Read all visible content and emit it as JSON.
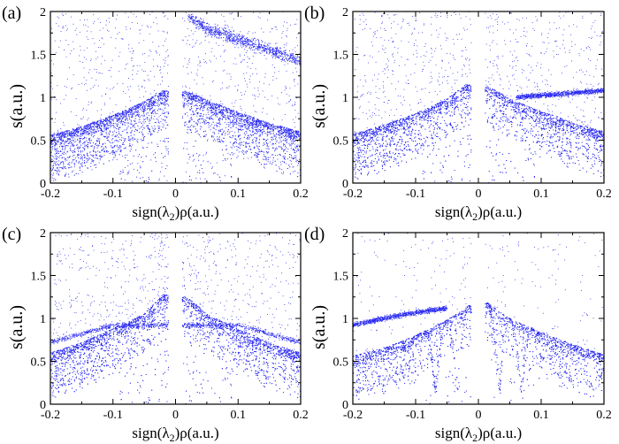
{
  "figure": {
    "point_color": "#2a2af0",
    "axis_color": "#000000",
    "background": "#ffffff"
  },
  "chart_data": [
    {
      "type": "scatter",
      "panel_label": "(a)",
      "xlabel": "sign(λ₂)ρ(a.u.)",
      "ylabel": "s(a.u.)",
      "xlim": [
        -0.2,
        0.2
      ],
      "ylim": [
        0,
        2
      ],
      "xticks": [
        "-0.2",
        "-0.1",
        "0",
        "0.1",
        "0.2"
      ],
      "yticks": [
        "0",
        "0.5",
        "1",
        "1.5",
        "2"
      ],
      "grid": false,
      "series": [
        {
          "values": [
            {
              "x": -0.2,
              "y": 0.56
            },
            {
              "x": -0.15,
              "y": 0.66
            },
            {
              "x": -0.1,
              "y": 0.79
            },
            {
              "x": -0.05,
              "y": 0.95
            },
            {
              "x": -0.02,
              "y": 1.08
            },
            {
              "x": 0.02,
              "y": 1.07
            },
            {
              "x": 0.05,
              "y": 0.97
            },
            {
              "x": 0.1,
              "y": 0.83
            },
            {
              "x": 0.15,
              "y": 0.7
            },
            {
              "x": 0.2,
              "y": 0.6
            }
          ]
        },
        {
          "values": [
            {
              "x": 0.02,
              "y": 1.95
            },
            {
              "x": 0.05,
              "y": 1.8
            },
            {
              "x": 0.1,
              "y": 1.68
            },
            {
              "x": 0.15,
              "y": 1.55
            },
            {
              "x": 0.2,
              "y": 1.42
            }
          ]
        }
      ]
    },
    {
      "type": "scatter",
      "panel_label": "(b)",
      "xlabel": "sign(λ₂)ρ(a.u.)",
      "ylabel": "s(a.u.)",
      "xlim": [
        -0.2,
        0.2
      ],
      "ylim": [
        0,
        2
      ],
      "xticks": [
        "-0.2",
        "-0.1",
        "0",
        "0.1",
        "0.2"
      ],
      "yticks": [
        "0",
        "0.5",
        "1",
        "1.5",
        "2"
      ],
      "grid": false,
      "series": [
        {
          "values": [
            {
              "x": -0.2,
              "y": 0.57
            },
            {
              "x": -0.15,
              "y": 0.68
            },
            {
              "x": -0.1,
              "y": 0.81
            },
            {
              "x": -0.05,
              "y": 0.98
            },
            {
              "x": -0.02,
              "y": 1.15
            },
            {
              "x": 0.02,
              "y": 1.12
            },
            {
              "x": 0.05,
              "y": 0.98
            },
            {
              "x": 0.1,
              "y": 0.84
            },
            {
              "x": 0.15,
              "y": 0.71
            },
            {
              "x": 0.2,
              "y": 0.6
            }
          ]
        },
        {
          "values": [
            {
              "x": 0.06,
              "y": 1.0
            },
            {
              "x": 0.1,
              "y": 1.02
            },
            {
              "x": 0.15,
              "y": 1.05
            },
            {
              "x": 0.2,
              "y": 1.08
            }
          ]
        }
      ]
    },
    {
      "type": "scatter",
      "panel_label": "(c)",
      "xlabel": "sign(λ₂)ρ(a.u.)",
      "ylabel": "s(a.u.)",
      "xlim": [
        -0.2,
        0.2
      ],
      "ylim": [
        0,
        2
      ],
      "xticks": [
        "-0.2",
        "-0.1",
        "0",
        "0.1",
        "0.2"
      ],
      "yticks": [
        "0",
        "0.5",
        "1",
        "1.5",
        "2"
      ],
      "grid": false,
      "series": [
        {
          "values": [
            {
              "x": -0.2,
              "y": 0.6
            },
            {
              "x": -0.15,
              "y": 0.72
            },
            {
              "x": -0.1,
              "y": 0.88
            },
            {
              "x": -0.05,
              "y": 1.05
            },
            {
              "x": -0.02,
              "y": 1.28
            },
            {
              "x": 0.02,
              "y": 1.25
            },
            {
              "x": 0.05,
              "y": 1.05
            },
            {
              "x": 0.1,
              "y": 0.88
            },
            {
              "x": 0.15,
              "y": 0.72
            },
            {
              "x": 0.2,
              "y": 0.6
            }
          ]
        },
        {
          "values": [
            {
              "x": -0.2,
              "y": 0.72
            },
            {
              "x": -0.1,
              "y": 0.92
            },
            {
              "x": 0.1,
              "y": 0.92
            },
            {
              "x": 0.2,
              "y": 0.72
            }
          ]
        }
      ]
    },
    {
      "type": "scatter",
      "panel_label": "(d)",
      "xlabel": "sign(λ₂)ρ(a.u.)",
      "ylabel": "s(a.u.)",
      "xlim": [
        -0.2,
        0.2
      ],
      "ylim": [
        0,
        2
      ],
      "xticks": [
        "-0.2",
        "-0.1",
        "0",
        "0.1",
        "0.2"
      ],
      "yticks": [
        "0",
        "0.5",
        "1",
        "1.5",
        "2"
      ],
      "grid": false,
      "series": [
        {
          "values": [
            {
              "x": -0.2,
              "y": 0.56
            },
            {
              "x": -0.15,
              "y": 0.66
            },
            {
              "x": -0.1,
              "y": 0.8
            },
            {
              "x": -0.05,
              "y": 0.98
            },
            {
              "x": -0.015,
              "y": 1.15
            },
            {
              "x": 0.015,
              "y": 1.18
            },
            {
              "x": 0.05,
              "y": 1.0
            },
            {
              "x": 0.1,
              "y": 0.84
            },
            {
              "x": 0.15,
              "y": 0.7
            },
            {
              "x": 0.2,
              "y": 0.58
            }
          ]
        },
        {
          "values": [
            {
              "x": -0.2,
              "y": 0.92
            },
            {
              "x": -0.15,
              "y": 1.0
            },
            {
              "x": -0.1,
              "y": 1.07
            },
            {
              "x": -0.05,
              "y": 1.12
            }
          ]
        }
      ]
    }
  ]
}
